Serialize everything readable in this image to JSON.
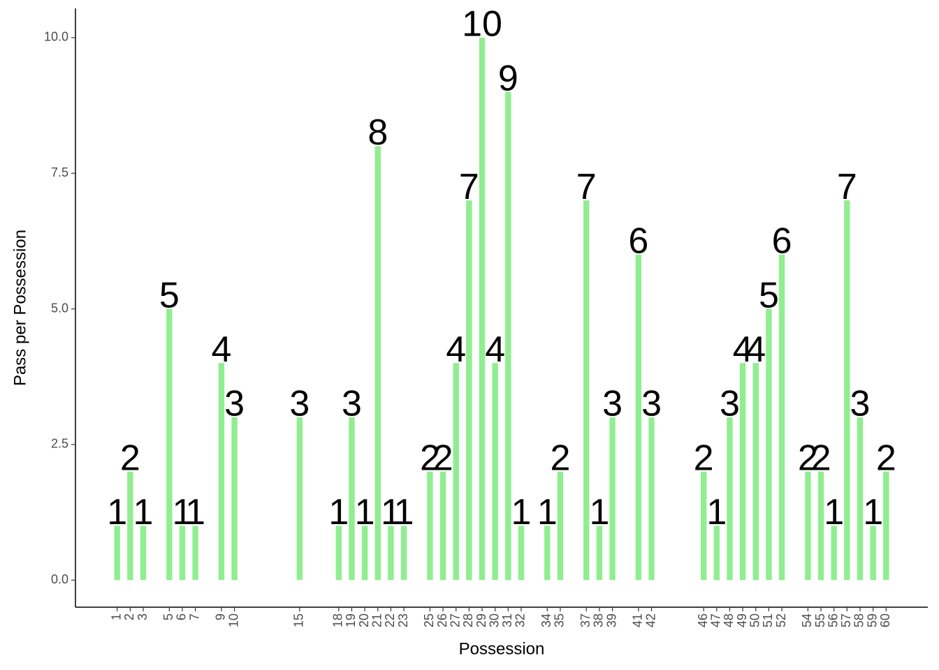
{
  "chart_data": {
    "type": "bar",
    "x_label": "Possession",
    "y_label": "Pass per Possession",
    "x": [
      1,
      2,
      3,
      5,
      6,
      7,
      9,
      10,
      15,
      18,
      19,
      20,
      21,
      22,
      23,
      25,
      26,
      27,
      28,
      29,
      30,
      31,
      32,
      34,
      35,
      37,
      38,
      39,
      41,
      42,
      46,
      47,
      48,
      49,
      50,
      51,
      52,
      54,
      55,
      56,
      57,
      58,
      59,
      60
    ],
    "values": [
      1,
      2,
      1,
      5,
      1,
      1,
      4,
      3,
      3,
      1,
      3,
      1,
      8,
      1,
      1,
      2,
      2,
      4,
      7,
      10,
      4,
      9,
      1,
      1,
      2,
      7,
      1,
      3,
      6,
      3,
      2,
      1,
      3,
      4,
      4,
      5,
      6,
      2,
      2,
      1,
      7,
      3,
      1,
      2
    ],
    "color": "#90ee90",
    "xlim": [
      -2.2,
      63.2
    ],
    "xticks": [
      1,
      2,
      3,
      5,
      6,
      7,
      9,
      10,
      15,
      18,
      19,
      20,
      21,
      22,
      23,
      25,
      26,
      27,
      28,
      29,
      30,
      31,
      32,
      34,
      35,
      37,
      38,
      39,
      41,
      42,
      46,
      47,
      48,
      49,
      50,
      51,
      52,
      54,
      55,
      56,
      57,
      58,
      59,
      60
    ],
    "ylim": [
      -0.5,
      10.54
    ],
    "yticks": [
      {
        "value": 0,
        "label": "0.0"
      },
      {
        "value": 2.5,
        "label": "2.5"
      },
      {
        "value": 5,
        "label": "5.0"
      },
      {
        "value": 7.5,
        "label": "7.5"
      },
      {
        "value": 10,
        "label": "10.0"
      }
    ],
    "grid": false
  }
}
